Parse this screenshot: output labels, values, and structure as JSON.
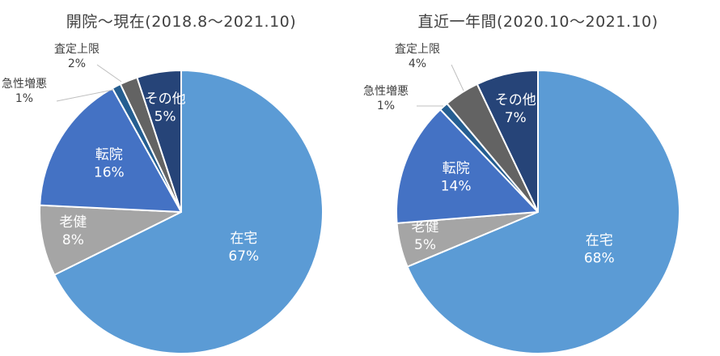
{
  "chart_data": [
    {
      "type": "pie",
      "title": "開院～現在(2018.8～2021.10)",
      "slices": [
        {
          "name": "在宅",
          "value": 67,
          "label": "67%",
          "color": "#5b9bd5"
        },
        {
          "name": "老健",
          "value": 8,
          "label": "8%",
          "color": "#a5a5a5"
        },
        {
          "name": "転院",
          "value": 16,
          "label": "16%",
          "color": "#4472c4"
        },
        {
          "name": "急性増悪",
          "value": 1,
          "label": "1%",
          "color": "#255e91"
        },
        {
          "name": "査定上限",
          "value": 2,
          "label": "2%",
          "color": "#636363"
        },
        {
          "name": "その他",
          "value": 5,
          "label": "5%",
          "color": "#264478"
        }
      ]
    },
    {
      "type": "pie",
      "title": "直近一年間(2020.10～2021.10)",
      "slices": [
        {
          "name": "在宅",
          "value": 68,
          "label": "68%",
          "color": "#5b9bd5"
        },
        {
          "name": "老健",
          "value": 5,
          "label": "5%",
          "color": "#a5a5a5"
        },
        {
          "name": "転院",
          "value": 14,
          "label": "14%",
          "color": "#4472c4"
        },
        {
          "name": "急性増悪",
          "value": 1,
          "label": "1%",
          "color": "#255e91"
        },
        {
          "name": "査定上限",
          "value": 4,
          "label": "4%",
          "color": "#636363"
        },
        {
          "name": "その他",
          "value": 7,
          "label": "7%",
          "color": "#264478"
        }
      ]
    }
  ]
}
